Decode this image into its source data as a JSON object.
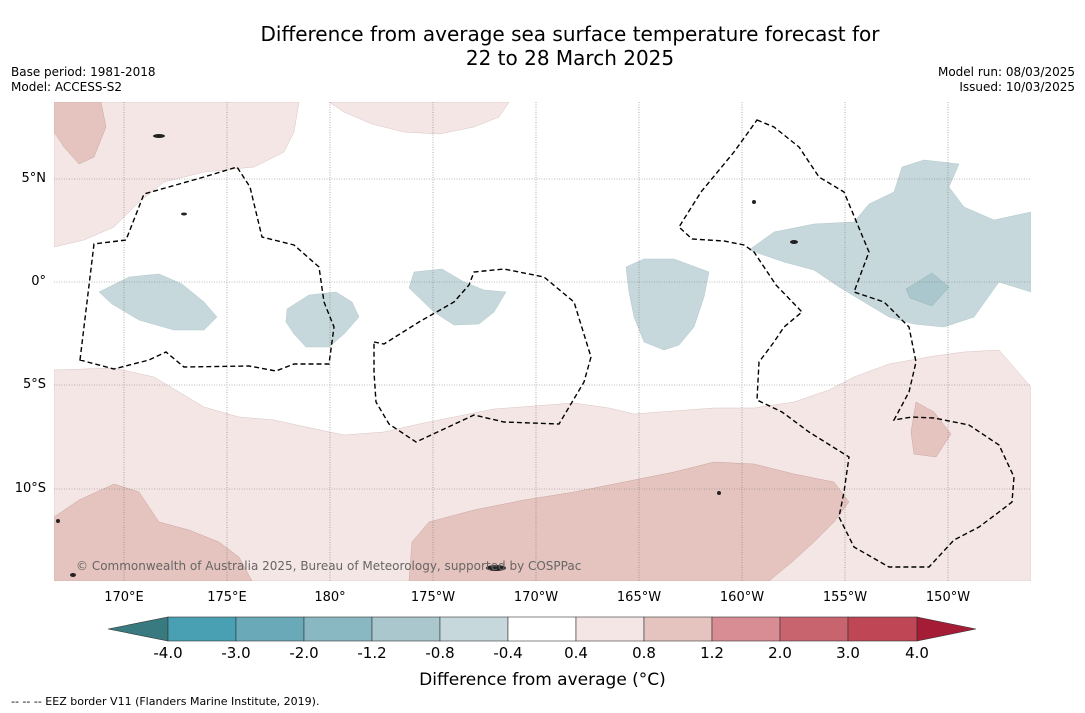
{
  "header": {
    "title_line1": "Difference from average sea surface temperature forecast for",
    "title_line2": "22 to 28 March 2025",
    "base_period": "Base period: 1981-2018",
    "model": "Model: ACCESS-S2",
    "model_run": "Model run: 08/03/2025",
    "issued": "Issued: 10/03/2025"
  },
  "map": {
    "lat_labels": [
      "5°N",
      "0°",
      "5°S",
      "10°S"
    ],
    "lon_labels": [
      "170°E",
      "175°E",
      "180°",
      "175°W",
      "170°W",
      "165°W",
      "160°W",
      "155°W",
      "150°W"
    ],
    "copyright": "© Commonwealth of Australia 2025, Bureau of Meteorology, supported by COSPPac",
    "eez_border": "EEZ border V11 (Flanders Marine Institute, 2019)"
  },
  "legend": {
    "tick_labels": [
      "-4.0",
      "-3.0",
      "-2.0",
      "-1.2",
      "-0.8",
      "-0.4",
      "0.4",
      "0.8",
      "1.2",
      "2.0",
      "3.0",
      "4.0"
    ],
    "colors": [
      "#387a80",
      "#48a0b2",
      "#6aaab8",
      "#8ab8c2",
      "#a9c7cc",
      "#c6d8dc",
      "#ffffff",
      "#f4e6e4",
      "#e5c3be",
      "#d88c94",
      "#c8646e",
      "#be4655",
      "#a51c36"
    ],
    "title": "Difference from average (°C)",
    "footer": "--  --  -- EEZ border V11 (Flanders Marine Institute, 2019)."
  }
}
